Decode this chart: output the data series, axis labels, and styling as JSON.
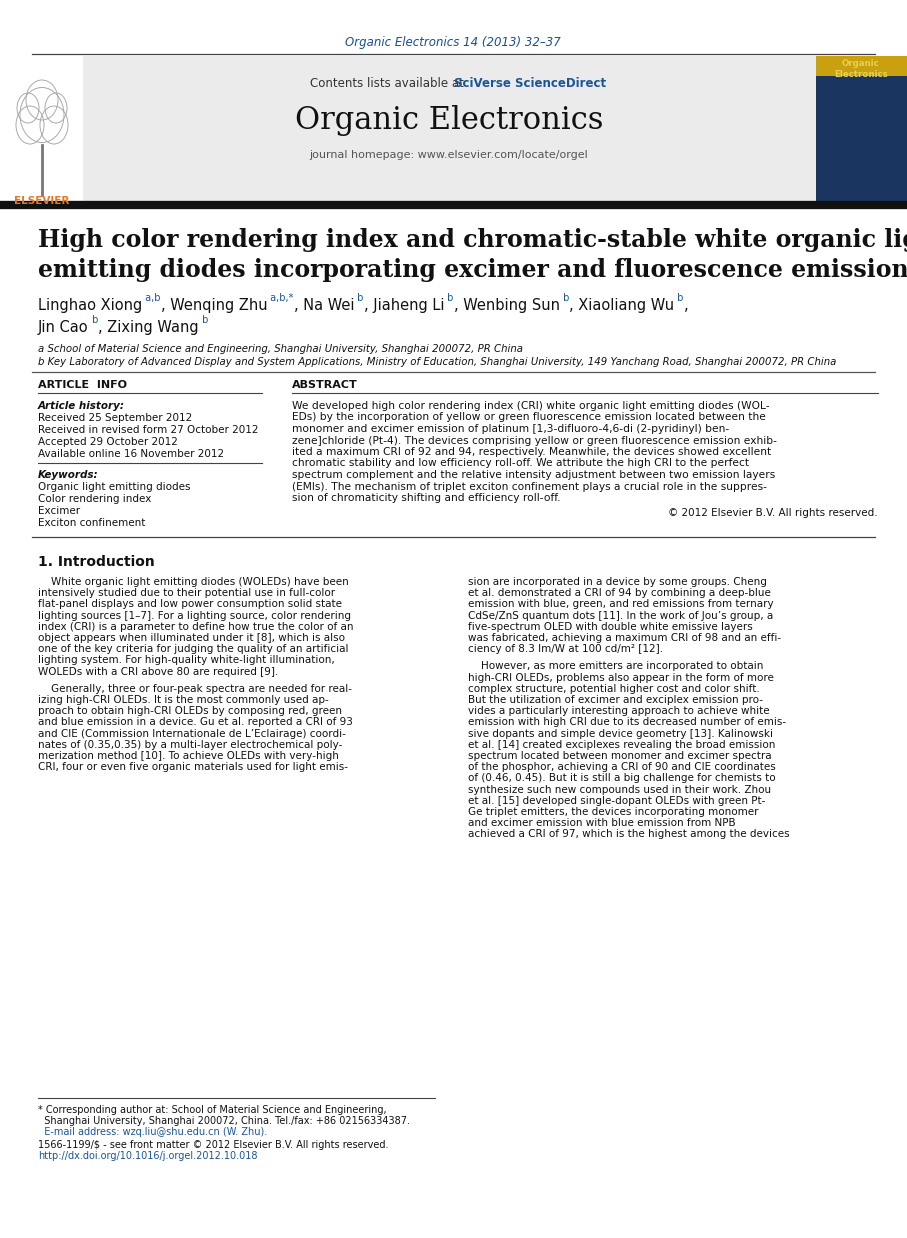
{
  "journal_ref": "Organic Electronics 14 (2013) 32–37",
  "journal_ref_color": "#1a4f8c",
  "journal_name": "Organic Electronics",
  "contents_line": "Contents lists available at ",
  "sciverse_text": "SciVerse ScienceDirect",
  "journal_homepage": "journal homepage: www.elsevier.com/locate/orgel",
  "paper_title_line1": "High color rendering index and chromatic-stable white organic light",
  "paper_title_line2": "emitting diodes incorporating excimer and fluorescence emission",
  "affil1": "a School of Material Science and Engineering, Shanghai University, Shanghai 200072, PR China",
  "affil2": "b Key Laboratory of Advanced Display and System Applications, Ministry of Education, Shanghai University, 149 Yanchang Road, Shanghai 200072, PR China",
  "article_history_label": "Article history:",
  "received1": "Received 25 September 2012",
  "received2": "Received in revised form 27 October 2012",
  "accepted": "Accepted 29 October 2012",
  "available": "Available online 16 November 2012",
  "keywords_label": "Keywords:",
  "keywords": [
    "Organic light emitting diodes",
    "Color rendering index",
    "Excimer",
    "Exciton confinement"
  ],
  "abstract_lines": [
    "We developed high color rendering index (CRI) white organic light emitting diodes (WOL-",
    "EDs) by the incorporation of yellow or green fluorescence emission located between the",
    "monomer and excimer emission of platinum [1,3-difluoro-4,6-di (2-pyridinyl) ben-",
    "zene]chloride (Pt-4). The devices comprising yellow or green fluorescence emission exhib-",
    "ited a maximum CRI of 92 and 94, respectively. Meanwhile, the devices showed excellent",
    "chromatic stability and low efficiency roll-off. We attribute the high CRI to the perfect",
    "spectrum complement and the relative intensity adjustment between two emission layers",
    "(EMls). The mechanism of triplet exciton confinement plays a crucial role in the suppres-",
    "sion of chromaticity shifting and efficiency roll-off."
  ],
  "copyright": "© 2012 Elsevier B.V. All rights reserved.",
  "intro_heading": "1. Introduction",
  "col1_para1_lines": [
    "    White organic light emitting diodes (WOLEDs) have been",
    "intensively studied due to their potential use in full-color",
    "flat-panel displays and low power consumption solid state",
    "lighting sources [1–7]. For a lighting source, color rendering",
    "index (CRI) is a parameter to define how true the color of an",
    "object appears when illuminated under it [8], which is also",
    "one of the key criteria for judging the quality of an artificial",
    "lighting system. For high-quality white-light illumination,",
    "WOLEDs with a CRI above 80 are required [9]."
  ],
  "col1_para2_lines": [
    "    Generally, three or four-peak spectra are needed for real-",
    "izing high-CRI OLEDs. It is the most commonly used ap-",
    "proach to obtain high-CRI OLEDs by composing red, green",
    "and blue emission in a device. Gu et al. reported a CRI of 93",
    "and CIE (Commission Internationale de L’Eclairage) coordi-",
    "nates of (0.35,0.35) by a multi-layer electrochemical poly-",
    "merization method [10]. To achieve OLEDs with very-high",
    "CRI, four or even five organic materials used for light emis-"
  ],
  "col2_para1_lines": [
    "sion are incorporated in a device by some groups. Cheng",
    "et al. demonstrated a CRI of 94 by combining a deep-blue",
    "emission with blue, green, and red emissions from ternary",
    "CdSe/ZnS quantum dots [11]. In the work of Jou’s group, a",
    "five-spectrum OLED with double white emissive layers",
    "was fabricated, achieving a maximum CRI of 98 and an effi-",
    "ciency of 8.3 lm/W at 100 cd/m² [12]."
  ],
  "col2_para2_lines": [
    "    However, as more emitters are incorporated to obtain",
    "high-CRI OLEDs, problems also appear in the form of more",
    "complex structure, potential higher cost and color shift.",
    "But the utilization of excimer and exciplex emission pro-",
    "vides a particularly interesting approach to achieve white",
    "emission with high CRI due to its decreased number of emis-",
    "sive dopants and simple device geometry [13]. Kalinowski",
    "et al. [14] created exciplexes revealing the broad emission",
    "spectrum located between monomer and excimer spectra",
    "of the phosphor, achieving a CRI of 90 and CIE coordinates",
    "of (0.46, 0.45). But it is still a big challenge for chemists to",
    "synthesize such new compounds used in their work. Zhou",
    "et al. [15] developed single-dopant OLEDs with green Pt-",
    "Ge triplet emitters, the devices incorporating monomer",
    "and excimer emission with blue emission from NPB",
    "achieved a CRI of 97, which is the highest among the devices"
  ],
  "footnote_lines": [
    "* Corresponding author at: School of Material Science and Engineering,",
    "  Shanghai University, Shanghai 200072, China. Tel./fax: +86 02156334387.",
    "  E-mail address: wzq.liu@shu.edu.cn (W. Zhu)."
  ],
  "footnote_bottom1": "1566-1199/$ - see front matter © 2012 Elsevier B.V. All rights reserved.",
  "footnote_bottom2": "http://dx.doi.org/10.1016/j.orgel.2012.10.018",
  "link_color": "#1a5599",
  "black": "#111111",
  "grey": "#555555"
}
